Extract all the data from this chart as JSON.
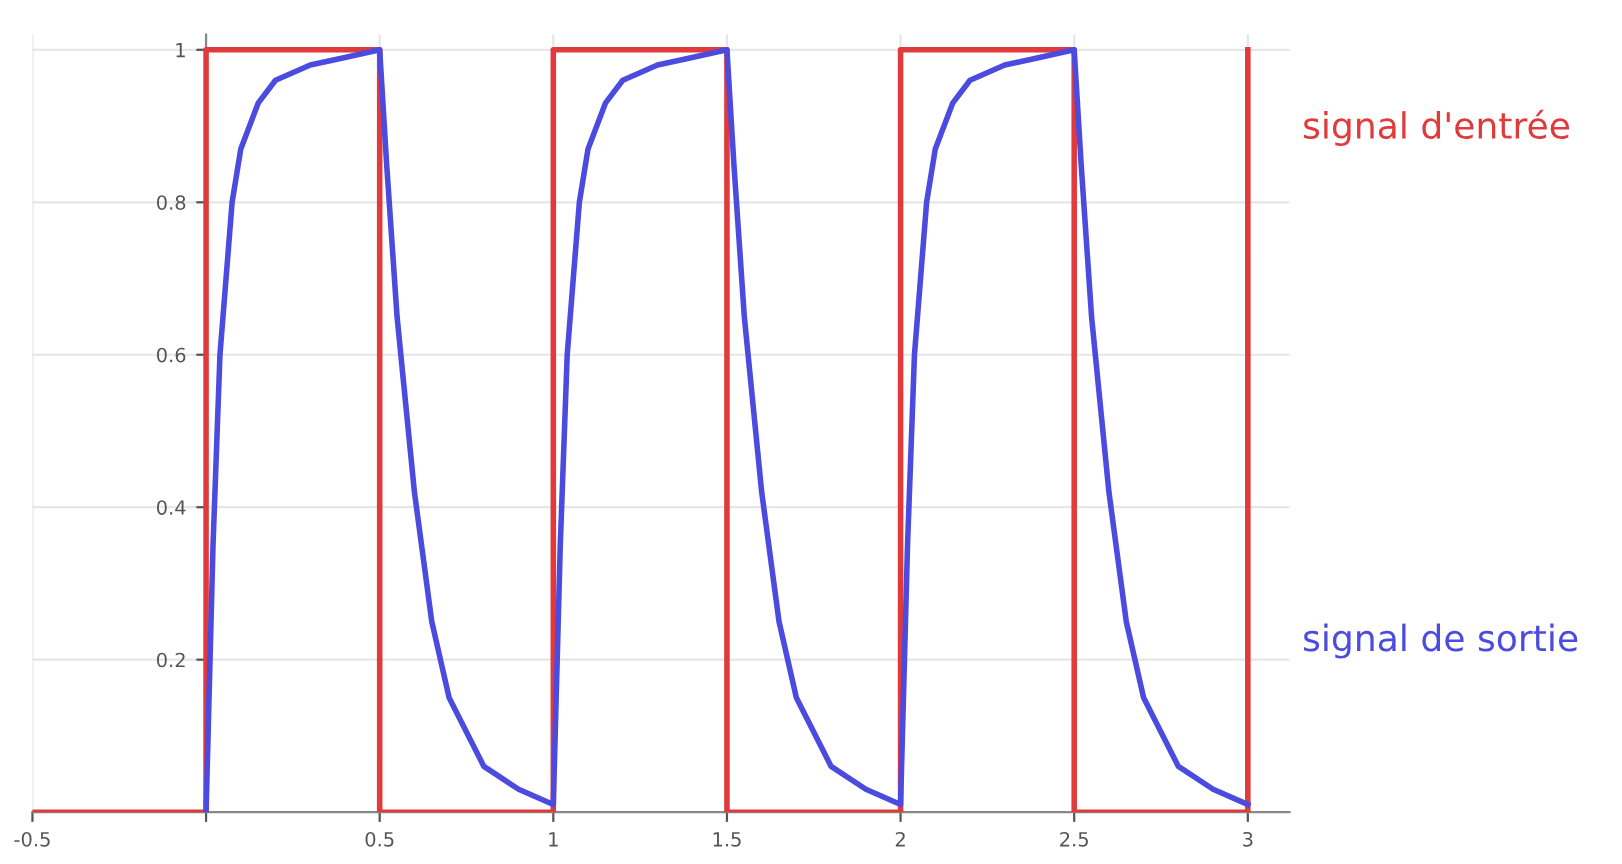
{
  "chart_data": {
    "type": "line",
    "xlim": [
      -0.5,
      3.12
    ],
    "ylim": [
      0,
      1.02
    ],
    "xticks": [
      -0.5,
      {
        "value": 0,
        "label": null
      },
      0.5,
      1,
      1.5,
      2,
      2.5,
      3
    ],
    "yticks": [
      {
        "value": 0.2,
        "label": "0.2"
      },
      {
        "value": 0.4,
        "label": "0.4"
      },
      {
        "value": 0.6,
        "label": "0.6"
      },
      {
        "value": 0.8,
        "label": "0.8"
      },
      {
        "value": 1,
        "label": "1"
      }
    ],
    "grid": true,
    "legend": false,
    "series": [
      {
        "name": "signal d'entrée",
        "type": "step",
        "color": "#e03a3a",
        "x": [
          -0.5,
          0,
          0.5,
          1,
          1.5,
          2,
          2.5,
          3,
          3
        ],
        "values": [
          0,
          1,
          0,
          1,
          0,
          1,
          0,
          1,
          1
        ]
      },
      {
        "name": "signal de sortie",
        "color": "#4b4be0",
        "x": [
          0,
          0.02,
          0.04,
          0.075,
          0.1,
          0.15,
          0.2,
          0.3,
          0.4,
          0.5,
          0.52,
          0.55,
          0.6,
          0.65,
          0.7,
          0.8,
          0.9,
          1.0,
          1.02,
          1.04,
          1.075,
          1.1,
          1.15,
          1.2,
          1.3,
          1.4,
          1.5,
          1.52,
          1.55,
          1.6,
          1.65,
          1.7,
          1.8,
          1.9,
          2.0,
          2.02,
          2.04,
          2.075,
          2.1,
          2.15,
          2.2,
          2.3,
          2.4,
          2.5,
          2.52,
          2.55,
          2.6,
          2.65,
          2.7,
          2.8,
          2.9,
          3.0
        ],
        "values": [
          0,
          0.35,
          0.6,
          0.8,
          0.87,
          0.93,
          0.96,
          0.98,
          0.99,
          1,
          0.85,
          0.65,
          0.42,
          0.25,
          0.15,
          0.06,
          0.03,
          0.01,
          0.35,
          0.6,
          0.8,
          0.87,
          0.93,
          0.96,
          0.98,
          0.99,
          1,
          0.85,
          0.65,
          0.42,
          0.25,
          0.15,
          0.06,
          0.03,
          0.01,
          0.35,
          0.6,
          0.8,
          0.87,
          0.93,
          0.96,
          0.98,
          0.99,
          1,
          0.85,
          0.65,
          0.42,
          0.25,
          0.15,
          0.06,
          0.03,
          0.01
        ]
      }
    ]
  }
}
